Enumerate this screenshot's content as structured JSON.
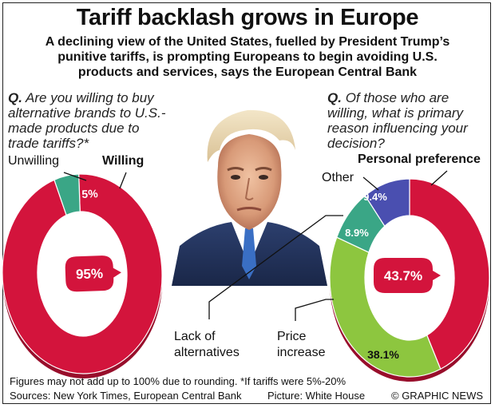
{
  "title": "Tariff backlash grows in Europe",
  "subtitle": "A declining view of the United States, fuelled by President Trump’s punitive tariffs, is prompting Europeans to begin avoiding U.S. products and services, says the European Central Bank",
  "colors": {
    "red": "#d3143c",
    "green": "#3aa686",
    "lime": "#8dc63f",
    "purple": "#4a4fb0",
    "dark_red": "#9c0f2e"
  },
  "chart_data": [
    {
      "type": "pie",
      "question_prefix": "Q.",
      "question": "Are you willing to buy alternative brands to U.S.-made products due to trade tariffs?*",
      "slices": [
        {
          "name": "Willing",
          "value": 95,
          "label": "95%",
          "color": "#d3143c"
        },
        {
          "name": "Unwilling",
          "value": 5,
          "label": "5%",
          "color": "#3aa686"
        }
      ]
    },
    {
      "type": "pie",
      "question_prefix": "Q.",
      "question": "Of those who are willing, what is primary reason influencing your decision?",
      "slices": [
        {
          "name": "Personal preference",
          "value": 43.7,
          "label": "43.7%",
          "color": "#d3143c"
        },
        {
          "name": "Price increase",
          "value": 38.1,
          "label": "38.1%",
          "color": "#8dc63f"
        },
        {
          "name": "Lack of alternatives",
          "value": 8.9,
          "label": "8.9%",
          "color": "#3aa686"
        },
        {
          "name": "Other",
          "value": 9.4,
          "label": "9.4%",
          "color": "#4a4fb0"
        }
      ]
    }
  ],
  "labels": {
    "unwilling": "Unwilling",
    "willing": "Willing",
    "other": "Other",
    "personal_preference": "Personal preference",
    "lack_line1": "Lack of",
    "lack_line2": "alternatives",
    "price_line1": "Price",
    "price_line2": "increase"
  },
  "footer": {
    "note": "Figures may not add up to 100% due to rounding. *If tariffs were 5%-20%",
    "sources": "Sources: New York Times, European Central Bank",
    "picture": "Picture: White House",
    "credit": "© GRAPHIC NEWS"
  }
}
